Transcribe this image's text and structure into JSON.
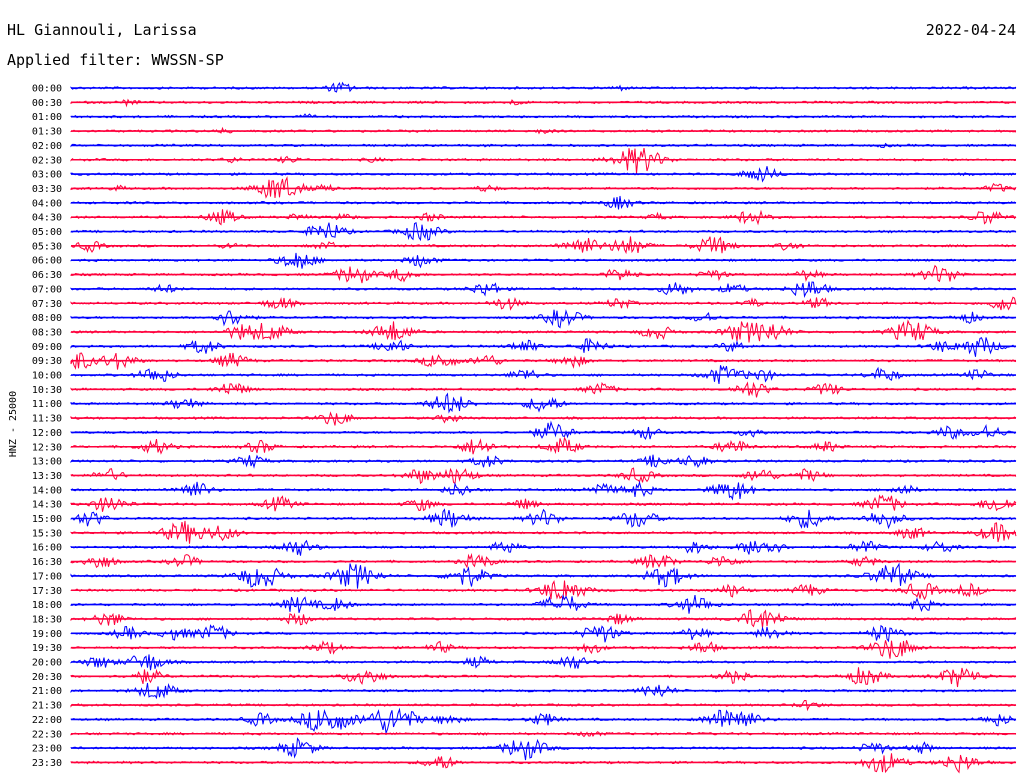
{
  "header": {
    "station": "HL Giannouli, Larissa",
    "date": "2022-04-24",
    "filter": "Applied filter: WWSSN-SP"
  },
  "chart_data": {
    "type": "line",
    "title": "HL Giannouli, Larissa",
    "date": "2022-04-24",
    "ylabel": "HNZ - 25000",
    "filter": "WWSSN-SP",
    "colors": {
      "even_rows": "#0000ff",
      "odd_rows": "#ff003c"
    },
    "rows": [
      {
        "label": "00:00",
        "events": [
          [
            0.285,
            5
          ],
          [
            0.58,
            2
          ]
        ]
      },
      {
        "label": "00:30",
        "events": [
          [
            0.06,
            2.5
          ],
          [
            0.47,
            2
          ]
        ]
      },
      {
        "label": "01:00",
        "events": [
          [
            0.25,
            1.5
          ]
        ]
      },
      {
        "label": "01:30",
        "events": [
          [
            0.16,
            2
          ],
          [
            0.5,
            2
          ]
        ]
      },
      {
        "label": "02:00",
        "events": [
          [
            0.45,
            1.5
          ],
          [
            0.86,
            1.2
          ]
        ]
      },
      {
        "label": "02:30",
        "events": [
          [
            0.17,
            2.5
          ],
          [
            0.23,
            3
          ],
          [
            0.32,
            2
          ],
          [
            0.6,
            13
          ]
        ]
      },
      {
        "label": "03:00",
        "events": [
          [
            0.73,
            8
          ]
        ]
      },
      {
        "label": "03:30",
        "events": [
          [
            0.05,
            2
          ],
          [
            0.22,
            12
          ],
          [
            0.27,
            3
          ],
          [
            0.44,
            3
          ],
          [
            0.98,
            4
          ]
        ]
      },
      {
        "label": "04:00",
        "events": [
          [
            0.58,
            6
          ]
        ]
      },
      {
        "label": "04:30",
        "events": [
          [
            0.16,
            7
          ],
          [
            0.24,
            3
          ],
          [
            0.29,
            3
          ],
          [
            0.38,
            4
          ],
          [
            0.62,
            3
          ],
          [
            0.72,
            7
          ],
          [
            0.97,
            7
          ]
        ]
      },
      {
        "label": "05:00",
        "events": [
          [
            0.27,
            9
          ],
          [
            0.37,
            9
          ]
        ]
      },
      {
        "label": "05:30",
        "events": [
          [
            0.02,
            5
          ],
          [
            0.17,
            3
          ],
          [
            0.27,
            4
          ],
          [
            0.54,
            9
          ],
          [
            0.59,
            9
          ],
          [
            0.68,
            9
          ],
          [
            0.76,
            4
          ]
        ]
      },
      {
        "label": "06:00",
        "events": [
          [
            0.24,
            9
          ],
          [
            0.37,
            6
          ]
        ]
      },
      {
        "label": "06:30",
        "events": [
          [
            0.3,
            9
          ],
          [
            0.35,
            6
          ],
          [
            0.58,
            6
          ],
          [
            0.68,
            5
          ],
          [
            0.78,
            5
          ],
          [
            0.92,
            9
          ]
        ]
      },
      {
        "label": "07:00",
        "events": [
          [
            0.1,
            4
          ],
          [
            0.44,
            7
          ],
          [
            0.64,
            7
          ],
          [
            0.7,
            5
          ],
          [
            0.78,
            9
          ]
        ]
      },
      {
        "label": "07:30",
        "events": [
          [
            0.22,
            6
          ],
          [
            0.46,
            6
          ],
          [
            0.58,
            5
          ],
          [
            0.72,
            4
          ],
          [
            0.79,
            5
          ],
          [
            0.99,
            8
          ]
        ]
      },
      {
        "label": "08:00",
        "events": [
          [
            0.17,
            8
          ],
          [
            0.52,
            9
          ],
          [
            0.67,
            5
          ],
          [
            0.95,
            5
          ]
        ]
      },
      {
        "label": "08:30",
        "events": [
          [
            0.18,
            7
          ],
          [
            0.21,
            9
          ],
          [
            0.34,
            10
          ],
          [
            0.62,
            7
          ],
          [
            0.71,
            9
          ],
          [
            0.74,
            9
          ],
          [
            0.89,
            11
          ]
        ]
      },
      {
        "label": "09:00",
        "events": [
          [
            0.14,
            7
          ],
          [
            0.34,
            7
          ],
          [
            0.48,
            6
          ],
          [
            0.55,
            7
          ],
          [
            0.7,
            5
          ],
          [
            0.92,
            5
          ],
          [
            0.96,
            10
          ]
        ]
      },
      {
        "label": "09:30",
        "events": [
          [
            0.0,
            11
          ],
          [
            0.05,
            8
          ],
          [
            0.17,
            7
          ],
          [
            0.39,
            8
          ],
          [
            0.44,
            6
          ],
          [
            0.53,
            6
          ]
        ]
      },
      {
        "label": "10:00",
        "events": [
          [
            0.09,
            8
          ],
          [
            0.48,
            6
          ],
          [
            0.69,
            9
          ],
          [
            0.73,
            6
          ],
          [
            0.86,
            7
          ],
          [
            0.96,
            5
          ]
        ]
      },
      {
        "label": "10:30",
        "events": [
          [
            0.17,
            7
          ],
          [
            0.56,
            6
          ],
          [
            0.72,
            8
          ],
          [
            0.8,
            6
          ]
        ]
      },
      {
        "label": "11:00",
        "events": [
          [
            0.12,
            6
          ],
          [
            0.4,
            10
          ],
          [
            0.5,
            8
          ]
        ]
      },
      {
        "label": "11:30",
        "events": [
          [
            0.28,
            7
          ],
          [
            0.4,
            4
          ]
        ]
      },
      {
        "label": "12:00",
        "events": [
          [
            0.51,
            9
          ],
          [
            0.61,
            6
          ],
          [
            0.72,
            5
          ],
          [
            0.93,
            6
          ],
          [
            0.97,
            7
          ]
        ]
      },
      {
        "label": "12:30",
        "events": [
          [
            0.09,
            7
          ],
          [
            0.2,
            6
          ],
          [
            0.43,
            8
          ],
          [
            0.52,
            8
          ],
          [
            0.7,
            7
          ],
          [
            0.8,
            5
          ]
        ]
      },
      {
        "label": "13:00",
        "events": [
          [
            0.19,
            6
          ],
          [
            0.44,
            6
          ],
          [
            0.62,
            6
          ],
          [
            0.66,
            6
          ]
        ]
      },
      {
        "label": "13:30",
        "events": [
          [
            0.04,
            6
          ],
          [
            0.37,
            7
          ],
          [
            0.41,
            8
          ],
          [
            0.6,
            7
          ],
          [
            0.73,
            7
          ],
          [
            0.78,
            6
          ]
        ]
      },
      {
        "label": "14:00",
        "events": [
          [
            0.13,
            8
          ],
          [
            0.41,
            6
          ],
          [
            0.56,
            6
          ],
          [
            0.6,
            7
          ],
          [
            0.7,
            10
          ],
          [
            0.88,
            5
          ]
        ]
      },
      {
        "label": "14:30",
        "events": [
          [
            0.04,
            8
          ],
          [
            0.22,
            7
          ],
          [
            0.37,
            6
          ],
          [
            0.48,
            5
          ],
          [
            0.86,
            9
          ],
          [
            0.98,
            8
          ]
        ]
      },
      {
        "label": "15:00",
        "events": [
          [
            0.02,
            7
          ],
          [
            0.4,
            9
          ],
          [
            0.5,
            8
          ],
          [
            0.6,
            9
          ],
          [
            0.78,
            9
          ],
          [
            0.86,
            9
          ]
        ]
      },
      {
        "label": "15:30",
        "events": [
          [
            0.12,
            11
          ],
          [
            0.16,
            7
          ],
          [
            0.89,
            6
          ],
          [
            0.98,
            9
          ]
        ]
      },
      {
        "label": "16:00",
        "events": [
          [
            0.24,
            8
          ],
          [
            0.46,
            6
          ],
          [
            0.66,
            6
          ],
          [
            0.73,
            10
          ],
          [
            0.84,
            6
          ],
          [
            0.92,
            6
          ]
        ]
      },
      {
        "label": "16:30",
        "events": [
          [
            0.03,
            7
          ],
          [
            0.12,
            6
          ],
          [
            0.43,
            7
          ],
          [
            0.62,
            8
          ],
          [
            0.69,
            6
          ],
          [
            0.84,
            5
          ]
        ]
      },
      {
        "label": "17:00",
        "events": [
          [
            0.2,
            12
          ],
          [
            0.3,
            12
          ],
          [
            0.42,
            10
          ],
          [
            0.63,
            10
          ],
          [
            0.87,
            12
          ]
        ]
      },
      {
        "label": "17:30",
        "events": [
          [
            0.52,
            12
          ],
          [
            0.7,
            6
          ],
          [
            0.78,
            6
          ],
          [
            0.9,
            8
          ],
          [
            0.95,
            6
          ]
        ]
      },
      {
        "label": "18:00",
        "events": [
          [
            0.24,
            8
          ],
          [
            0.28,
            6
          ],
          [
            0.52,
            10
          ],
          [
            0.66,
            9
          ],
          [
            0.9,
            6
          ]
        ]
      },
      {
        "label": "18:30",
        "events": [
          [
            0.04,
            7
          ],
          [
            0.24,
            6
          ],
          [
            0.73,
            11
          ],
          [
            0.58,
            5
          ]
        ]
      },
      {
        "label": "19:00",
        "events": [
          [
            0.06,
            6
          ],
          [
            0.11,
            6
          ],
          [
            0.15,
            8
          ],
          [
            0.56,
            9
          ],
          [
            0.66,
            6
          ],
          [
            0.74,
            6
          ],
          [
            0.86,
            8
          ]
        ]
      },
      {
        "label": "19:30",
        "events": [
          [
            0.27,
            6
          ],
          [
            0.39,
            5
          ],
          [
            0.55,
            5
          ],
          [
            0.67,
            6
          ],
          [
            0.87,
            11
          ]
        ]
      },
      {
        "label": "20:00",
        "events": [
          [
            0.03,
            6
          ],
          [
            0.08,
            9
          ],
          [
            0.43,
            5
          ],
          [
            0.53,
            7
          ]
        ]
      },
      {
        "label": "20:30",
        "events": [
          [
            0.08,
            7
          ],
          [
            0.31,
            9
          ],
          [
            0.7,
            6
          ],
          [
            0.84,
            9
          ],
          [
            0.94,
            10
          ]
        ]
      },
      {
        "label": "21:00",
        "events": [
          [
            0.09,
            9
          ],
          [
            0.62,
            7
          ]
        ]
      },
      {
        "label": "21:30",
        "events": [
          [
            0.78,
            4
          ]
        ]
      },
      {
        "label": "22:00",
        "events": [
          [
            0.2,
            6
          ],
          [
            0.27,
            14
          ],
          [
            0.34,
            14
          ],
          [
            0.4,
            5
          ],
          [
            0.5,
            6
          ],
          [
            0.7,
            13
          ],
          [
            0.98,
            6
          ]
        ]
      },
      {
        "label": "22:30",
        "events": [
          [
            0.55,
            3
          ]
        ]
      },
      {
        "label": "23:00",
        "events": [
          [
            0.24,
            9
          ],
          [
            0.48,
            11
          ],
          [
            0.85,
            6
          ],
          [
            0.9,
            5
          ]
        ]
      },
      {
        "label": "23:30",
        "events": [
          [
            0.39,
            7
          ],
          [
            0.86,
            10
          ],
          [
            0.94,
            9
          ]
        ]
      }
    ]
  }
}
